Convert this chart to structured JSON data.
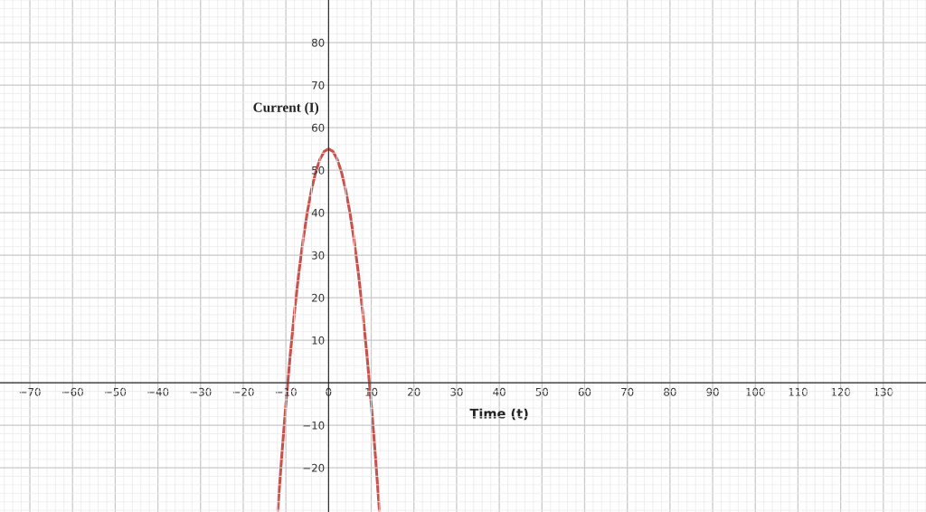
{
  "chart_data": {
    "type": "line",
    "xlabel": "Time (t)",
    "ylabel": "Current (I)",
    "x": [
      -11.9,
      -11.5,
      -11,
      -10.5,
      -10,
      -9,
      -8,
      -7,
      -6,
      -5,
      -4,
      -3,
      -2,
      -1,
      0,
      1,
      2,
      3,
      4,
      5,
      6,
      7,
      8,
      9,
      10,
      10.5,
      11,
      11.5,
      11.9
    ],
    "series": [
      {
        "color": "#c9504b",
        "values": [
          -30,
          -24.4,
          -17.6,
          -11.2,
          -5,
          6.4,
          16.6,
          25.6,
          33.4,
          40,
          45.4,
          49.6,
          52.6,
          54.4,
          55,
          54.4,
          52.6,
          49.6,
          45.4,
          40,
          33.4,
          25.6,
          16.6,
          6.4,
          -5,
          -11.2,
          -17.6,
          -24.4,
          -30
        ]
      }
    ],
    "xlim": [
      -77,
      140
    ],
    "ylim": [
      -30.4,
      90
    ],
    "xticks": [
      -70,
      -60,
      -50,
      -40,
      -30,
      -20,
      -10,
      0,
      10,
      20,
      30,
      40,
      50,
      60,
      70,
      80,
      90,
      100,
      110,
      120,
      130
    ],
    "yticks": [
      -20,
      -10,
      10,
      20,
      30,
      40,
      50,
      60,
      70,
      80
    ],
    "grid": true,
    "line_style": "solid",
    "marker": "none"
  }
}
